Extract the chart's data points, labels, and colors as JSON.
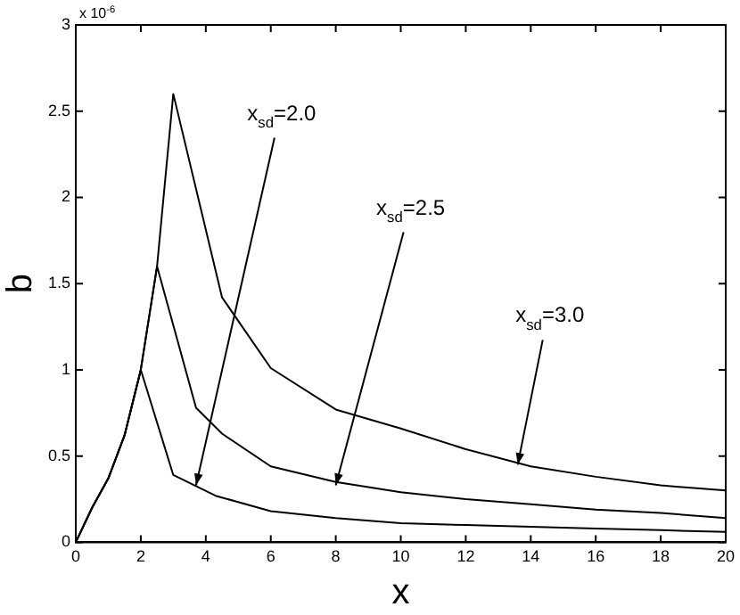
{
  "chart_data": {
    "type": "line",
    "xlabel": "x",
    "ylabel": "b",
    "xlim": [
      0,
      20
    ],
    "ylim": [
      0,
      3
    ],
    "xticks": [
      0,
      2,
      4,
      6,
      8,
      10,
      12,
      14,
      16,
      18,
      20
    ],
    "yticks": [
      0,
      0.5,
      1,
      1.5,
      2,
      2.5,
      3
    ],
    "grid": false,
    "legend": false,
    "marker": "none",
    "line_style": "solid",
    "series": [
      {
        "color": "#000000",
        "x": [
          0,
          0.5,
          1,
          1.5,
          2,
          3,
          4.3,
          6,
          8,
          10,
          12,
          14,
          16,
          18,
          20
        ],
        "values": [
          0,
          0.2,
          0.37,
          0.62,
          1.0,
          0.39,
          0.27,
          0.18,
          0.14,
          0.11,
          0.1,
          0.09,
          0.08,
          0.07,
          0.06
        ]
      },
      {
        "color": "#000000",
        "x": [
          0,
          0.5,
          1,
          1.5,
          2,
          2.5,
          3.7,
          4.5,
          6,
          8,
          10,
          12,
          14,
          16,
          18,
          20
        ],
        "values": [
          0,
          0.2,
          0.37,
          0.62,
          1.0,
          1.6,
          0.78,
          0.63,
          0.44,
          0.35,
          0.29,
          0.25,
          0.22,
          0.19,
          0.17,
          0.14
        ]
      },
      {
        "color": "#000000",
        "x": [
          0,
          0.5,
          1,
          1.5,
          2,
          2.5,
          3,
          4.5,
          6,
          8,
          10,
          12,
          14,
          16,
          18,
          20
        ],
        "values": [
          0,
          0.2,
          0.37,
          0.62,
          1.0,
          1.6,
          2.6,
          1.42,
          1.01,
          0.77,
          0.66,
          0.54,
          0.44,
          0.38,
          0.33,
          0.3
        ]
      }
    ],
    "annotations": [
      "x 10$^{-6}$",
      {
        "text": "x$_{sd}$=2.0",
        "x": 3.7,
        "y": 0.33
      },
      {
        "text": "x$_{sd}$=2.5",
        "x": 8,
        "y": 0.33
      },
      {
        "text": "x$_{sd}$=3.0",
        "x": 13.6,
        "y": 0.45
      }
    ]
  }
}
